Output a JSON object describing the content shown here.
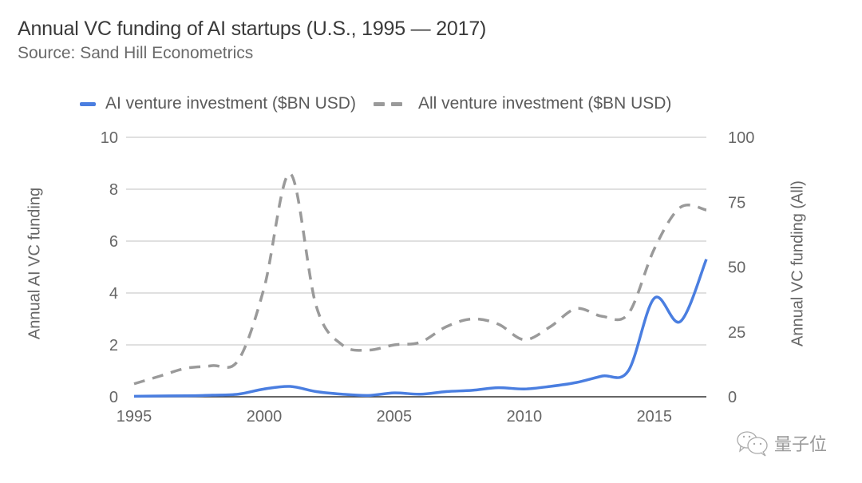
{
  "header": {
    "title": "Annual VC funding of AI startups (U.S., 1995 — 2017)",
    "subtitle": "Source: Sand Hill Econometrics"
  },
  "legend": [
    {
      "label": "AI venture investment ($BN USD)",
      "style": "solid",
      "color": "#4a7ee0"
    },
    {
      "label": "All venture investment ($BN USD)",
      "style": "dashed",
      "color": "#9a9a9a"
    }
  ],
  "axes": {
    "left_label": "Annual AI VC funding",
    "right_label": "Annual VC funding (All)",
    "left_ticks": [
      "0",
      "2",
      "4",
      "6",
      "8",
      "10"
    ],
    "right_ticks": [
      "0",
      "25",
      "50",
      "75",
      "100"
    ],
    "x_ticks": [
      "1995",
      "2000",
      "2005",
      "2010",
      "2015"
    ]
  },
  "watermark": {
    "icon": "wechat-icon",
    "text": "量子位"
  },
  "chart_data": {
    "type": "line",
    "title": "Annual VC funding of AI startups (U.S., 1995 — 2017)",
    "subtitle": "Source: Sand Hill Econometrics",
    "xlabel": "",
    "ylabel": "Annual AI VC funding",
    "ylabel_right": "Annual VC funding (All)",
    "ylim": [
      0,
      10
    ],
    "ylim_right": [
      0,
      100
    ],
    "grid": true,
    "legend_position": "top",
    "x": [
      1995,
      1996,
      1997,
      1998,
      1999,
      2000,
      2001,
      2002,
      2003,
      2004,
      2005,
      2006,
      2007,
      2008,
      2009,
      2010,
      2011,
      2012,
      2013,
      2014,
      2015,
      2016,
      2017
    ],
    "series": [
      {
        "name": "AI venture investment ($BN USD)",
        "axis": "left",
        "style": "solid",
        "color": "#4a7ee0",
        "values": [
          0.02,
          0.03,
          0.04,
          0.06,
          0.1,
          0.3,
          0.4,
          0.2,
          0.1,
          0.05,
          0.15,
          0.1,
          0.2,
          0.25,
          0.35,
          0.3,
          0.4,
          0.55,
          0.8,
          1.0,
          3.8,
          2.9,
          5.3
        ]
      },
      {
        "name": "All venture investment ($BN USD)",
        "axis": "right",
        "style": "dashed",
        "color": "#9a9a9a",
        "values": [
          5,
          8,
          11,
          12,
          14,
          42,
          86,
          35,
          20,
          18,
          20,
          21,
          27,
          30,
          28,
          22,
          27,
          34,
          31,
          32,
          57,
          73,
          72
        ]
      }
    ]
  }
}
